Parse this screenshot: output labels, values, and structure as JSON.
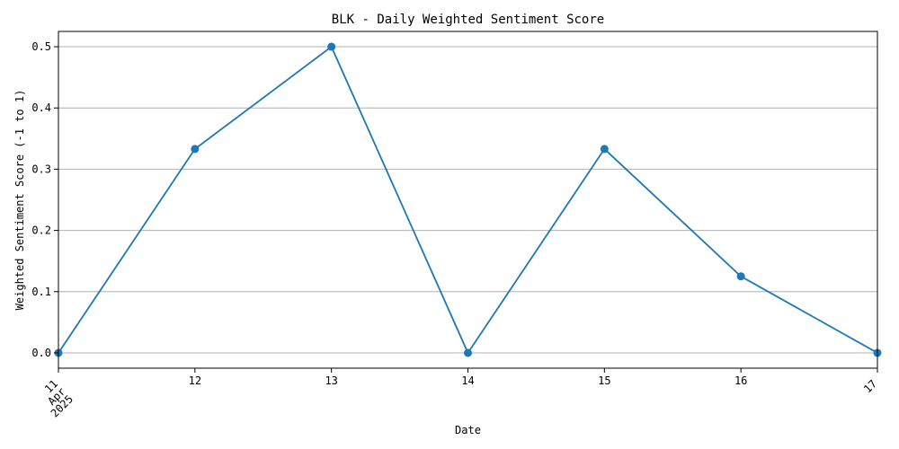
{
  "chart_data": {
    "type": "line",
    "title": "BLK - Daily Weighted Sentiment Score",
    "xlabel": "Date",
    "ylabel": "Weighted Sentiment Score (-1 to 1)",
    "x": [
      "2025-04-11",
      "2025-04-12",
      "2025-04-13",
      "2025-04-14",
      "2025-04-15",
      "2025-04-16",
      "2025-04-17"
    ],
    "x_tick_labels": [
      [
        "11",
        "Apr",
        "2025"
      ],
      [
        "12"
      ],
      [
        "13"
      ],
      [
        "14"
      ],
      [
        "15"
      ],
      [
        "16"
      ],
      [
        "17"
      ]
    ],
    "series": [
      {
        "values": [
          0.0,
          0.333,
          0.5,
          0.0,
          0.333,
          0.125,
          0.0
        ],
        "color": "#1f77b4",
        "marker": "circle"
      }
    ],
    "yticks": [
      0.0,
      0.1,
      0.2,
      0.3,
      0.4,
      0.5
    ],
    "ytick_labels": [
      "0.0",
      "0.1",
      "0.2",
      "0.3",
      "0.4",
      "0.5"
    ],
    "ylim": [
      -0.025,
      0.525
    ],
    "grid": "y-major",
    "legend": "none"
  }
}
